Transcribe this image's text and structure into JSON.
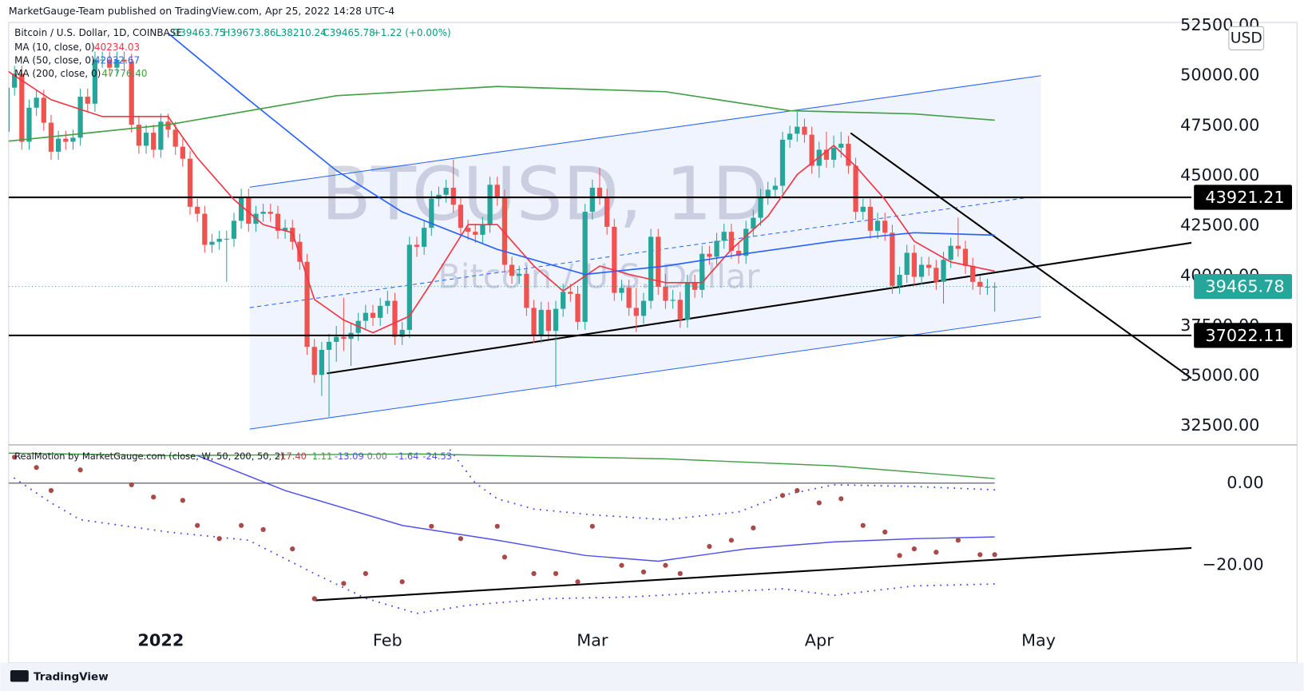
{
  "header": {
    "published": "MarketGauge-Team published on TradingView.com, Apr 25, 2022 14:28 UTC-4",
    "symbol": "Bitcoin / U.S. Dollar, 1D, COINBASE",
    "ohlc": [
      "O39463.75",
      "H39673.86",
      "L38210.24",
      "C39465.78",
      "+1.22 (+0.00%)"
    ]
  },
  "watermark": {
    "symbol": "BTCUSD, 1D",
    "name": "Bitcoin / U.S. Dollar"
  },
  "currency": "USD",
  "footer": "TradingView",
  "chart_data": [
    {
      "type": "candlestick",
      "up_color": "#26a69a",
      "down_color": "#ef5350",
      "xlim": [
        0.2,
        161.9
      ],
      "xticks": [
        {
          "value": 21,
          "label": "2022"
        },
        {
          "value": 52,
          "label": "Feb"
        },
        {
          "value": 80,
          "label": "Mar"
        },
        {
          "value": 111,
          "label": "Apr"
        },
        {
          "value": 141,
          "label": "May"
        }
      ],
      "ylim": [
        31595,
        52659
      ],
      "yticks": [
        {
          "value": 32500,
          "label": "32500.00"
        },
        {
          "value": 35000,
          "label": "35000.00"
        },
        {
          "value": 37500,
          "label": "37500.00"
        },
        {
          "value": 40000,
          "label": "40000.00"
        },
        {
          "value": 42500,
          "label": "42500.00"
        },
        {
          "value": 45000,
          "label": "45000.00"
        },
        {
          "value": 47500,
          "label": "47500.00"
        },
        {
          "value": 50000,
          "label": "50000.00"
        },
        {
          "value": 52500,
          "label": "52500.00"
        }
      ],
      "grid": false,
      "levels": [
        43921.21,
        37022.11
      ],
      "open": [
        47200,
        49400,
        50100,
        46700,
        48400,
        48900,
        47650,
        46200,
        46850,
        46700,
        46900,
        48950,
        48600,
        50800,
        50800,
        50400,
        50800,
        50700,
        47550,
        46500,
        47150,
        46300,
        47700,
        47300,
        46450,
        45850,
        43450,
        43100,
        41550,
        41700,
        41850,
        41850,
        42750,
        43950,
        42600,
        43100,
        43200,
        43100,
        42250,
        42400,
        41700,
        40700,
        36450,
        35050,
        36300,
        36700,
        36950,
        36850,
        37150,
        37750,
        38150,
        37900,
        38500,
        38750,
        36950,
        37300,
        41550,
        41450,
        42400,
        43850,
        44050,
        44400,
        43550,
        42400,
        42200,
        42050,
        42550,
        44550,
        43900,
        40550,
        40000,
        40100,
        38400,
        37050,
        38300,
        37250,
        38350,
        39200,
        39100,
        37700,
        43200,
        44400,
        43950,
        42450,
        39150,
        39400,
        38400,
        38000,
        38750,
        41950,
        39450,
        38750,
        38800,
        37800,
        39650,
        39300,
        41100,
        40950,
        41750,
        42200,
        41250,
        41000,
        42350,
        42900,
        43950,
        44300,
        44500,
        46800,
        47100,
        47450,
        47050,
        45500,
        46300,
        45800,
        46400,
        46600,
        45500,
        43200,
        43450,
        42250,
        42750,
        42150,
        39500,
        40050,
        41150,
        39950,
        40550,
        40400,
        39700,
        40800,
        41500,
        41350,
        40500,
        39700,
        39450,
        39463.75
      ],
      "high": [
        49800,
        50500,
        50500,
        48800,
        49300,
        49300,
        48050,
        47250,
        47250,
        47300,
        49350,
        49350,
        51200,
        51200,
        51200,
        51200,
        51200,
        51100,
        47950,
        47550,
        47550,
        48100,
        48100,
        47700,
        46850,
        46250,
        43850,
        43500,
        42100,
        42250,
        42250,
        43150,
        44350,
        44350,
        43500,
        43600,
        43600,
        43500,
        42800,
        42800,
        42100,
        41100,
        36850,
        36700,
        37100,
        37500,
        38900,
        37600,
        38150,
        38550,
        38550,
        38900,
        39250,
        39150,
        37700,
        41950,
        41950,
        42800,
        44250,
        44450,
        44800,
        45800,
        43950,
        42800,
        42600,
        42950,
        44950,
        44950,
        44300,
        40950,
        40500,
        40500,
        38800,
        38700,
        38700,
        38750,
        39600,
        39600,
        39500,
        43600,
        44800,
        45400,
        44350,
        42850,
        39800,
        39800,
        39400,
        39150,
        42350,
        42350,
        40100,
        39300,
        39200,
        40050,
        40050,
        41500,
        41500,
        42150,
        42600,
        42600,
        41650,
        42750,
        43300,
        44350,
        44700,
        44900,
        47200,
        47500,
        48200,
        47850,
        47450,
        46700,
        47200,
        47000,
        47200,
        47000,
        45900,
        43850,
        43850,
        43150,
        43150,
        42550,
        40450,
        41550,
        41550,
        40950,
        40950,
        40800,
        41200,
        41900,
        42900,
        41750,
        40900,
        40000,
        39850,
        39673.86
      ],
      "low": [
        46800,
        49000,
        46300,
        46300,
        48000,
        47250,
        45800,
        45800,
        46300,
        46300,
        46500,
        48200,
        48200,
        50400,
        50000,
        50000,
        50300,
        47150,
        46100,
        46100,
        45900,
        45900,
        46900,
        46050,
        45450,
        43050,
        42700,
        41150,
        41150,
        41300,
        39700,
        41450,
        42350,
        42200,
        42200,
        42700,
        42700,
        41850,
        41850,
        41300,
        40300,
        36050,
        34650,
        34000,
        32950,
        35700,
        36250,
        35500,
        36750,
        37350,
        37500,
        37500,
        38100,
        36550,
        36550,
        36900,
        40950,
        41050,
        42000,
        43450,
        43650,
        43150,
        42000,
        41800,
        41650,
        41650,
        42150,
        43500,
        40150,
        39600,
        39600,
        38000,
        36650,
        36650,
        36850,
        34400,
        37950,
        38700,
        37300,
        37300,
        42800,
        43550,
        42050,
        38750,
        38750,
        38000,
        37200,
        37600,
        38350,
        39050,
        38350,
        38350,
        37400,
        37400,
        38900,
        38900,
        40550,
        40550,
        41350,
        40850,
        40600,
        40600,
        41950,
        42500,
        43550,
        43900,
        44100,
        46400,
        46700,
        46650,
        45100,
        44900,
        45400,
        45400,
        45900,
        45100,
        42800,
        42800,
        41850,
        41850,
        41750,
        39100,
        39100,
        39650,
        39550,
        39550,
        40000,
        39300,
        38600,
        40400,
        40950,
        40100,
        39300,
        39050,
        39050,
        38210.24
      ],
      "close": [
        49400,
        50100,
        46700,
        48400,
        48900,
        47650,
        46200,
        46850,
        46700,
        46900,
        48950,
        48600,
        50800,
        50800,
        50400,
        50800,
        50700,
        47550,
        46500,
        47150,
        46300,
        47700,
        47300,
        46450,
        45850,
        43450,
        43100,
        41550,
        41700,
        41850,
        41850,
        42750,
        43950,
        42600,
        43100,
        43200,
        43100,
        42250,
        42400,
        41700,
        40700,
        36450,
        35050,
        36300,
        36700,
        36950,
        36850,
        37150,
        37750,
        38150,
        37900,
        38500,
        38750,
        36950,
        37300,
        41550,
        41450,
        42400,
        43850,
        44050,
        44400,
        43550,
        42400,
        42200,
        42050,
        42550,
        44550,
        43900,
        40550,
        40000,
        40100,
        38400,
        37050,
        38300,
        37250,
        38350,
        39200,
        39100,
        37700,
        43200,
        44400,
        43950,
        42450,
        39150,
        39400,
        38400,
        38000,
        38750,
        41950,
        39450,
        38750,
        38800,
        37800,
        39650,
        39300,
        41100,
        40950,
        41750,
        42200,
        41250,
        41000,
        42350,
        42900,
        43950,
        44300,
        44500,
        46800,
        47100,
        47450,
        47050,
        45500,
        46300,
        45800,
        46400,
        46600,
        45500,
        43200,
        43450,
        42250,
        42750,
        42150,
        39500,
        40050,
        41150,
        39950,
        40550,
        40400,
        39700,
        40800,
        41500,
        41350,
        40500,
        39700,
        39450,
        39450,
        39465.78
      ],
      "series": [
        {
          "name": "MA (10, close, 0)",
          "legend_value": "40234.03",
          "color": "#f23645",
          "x": [
            0,
            6,
            13,
            22,
            26,
            31,
            35,
            39,
            42,
            46,
            50,
            55,
            58,
            63,
            67,
            72,
            76,
            81,
            85,
            90,
            95,
            99,
            104,
            108,
            113,
            116,
            120,
            124,
            129,
            135
          ],
          "values": [
            50250,
            48800,
            47960,
            47960,
            45890,
            43810,
            42560,
            42150,
            38820,
            37790,
            37160,
            37990,
            39660,
            42560,
            42560,
            40490,
            39240,
            40490,
            40070,
            39660,
            39660,
            41320,
            42980,
            45060,
            46510,
            45470,
            43810,
            41730,
            40690,
            40234.03
          ]
        },
        {
          "name": "MA (50, close, 0)",
          "legend_value": "42032.67",
          "color": "#2962ff",
          "x": [
            22,
            33,
            45,
            54,
            67,
            79,
            90,
            101,
            113,
            118,
            124,
            135
          ],
          "values": [
            52120,
            48800,
            45260,
            43190,
            41320,
            40070,
            40490,
            41110,
            41730,
            41940,
            42150,
            42032.67
          ]
        },
        {
          "name": "MA (200, close, 0)",
          "legend_value": "47776.40",
          "color": "#43a047",
          "x": [
            0,
            22,
            45,
            67,
            90,
            107,
            124,
            135
          ],
          "values": [
            46720,
            47550,
            49000,
            49460,
            49200,
            48250,
            48090,
            47776.4
          ]
        }
      ]
    },
    {
      "type": "indicator",
      "title": "RealMotion by MarketGauge.com (close, W, 50, 200, 50, 2)",
      "legend_values": [
        "-17.40",
        "1.11",
        "-13.09",
        "0.00",
        "-1.64",
        "-24.53"
      ],
      "legend_colors": [
        "#a84a4a",
        "#43a047",
        "#5050f0",
        "#787b86",
        "#5050f0",
        "#5050f0"
      ],
      "xlim": [
        0.2,
        161.9
      ],
      "ylim": [
        -36.2,
        9.1
      ],
      "yticks": [
        {
          "value": 0,
          "label": "0.00"
        },
        {
          "value": -20,
          "label": "−20.00"
        }
      ],
      "series": [
        {
          "style": "line",
          "color": "#43a047",
          "x": [
            0,
            22,
            56,
            90,
            113,
            135
          ],
          "values": [
            7.3,
            6.7,
            7.1,
            5.9,
            4.2,
            1.11
          ]
        },
        {
          "style": "line",
          "color": "#5050f0",
          "x": [
            26,
            38,
            54,
            67,
            79,
            89,
            101,
            113,
            124,
            135
          ],
          "values": [
            6.7,
            -1.8,
            -10.3,
            -13.9,
            -17.6,
            -19,
            -16,
            -14.3,
            -13.5,
            -13.09
          ]
        },
        {
          "style": "dotted",
          "color": "#4a4af0",
          "x": [
            60,
            64,
            67,
            72,
            80,
            90,
            100,
            106,
            113,
            124,
            135
          ],
          "values": [
            9.3,
            0,
            -3.8,
            -6.3,
            -7.7,
            -8.9,
            -7,
            -3,
            -0.4,
            -0.8,
            -1.64
          ]
        },
        {
          "style": "dotted",
          "color": "#4a4af0",
          "x": [
            1,
            6,
            10,
            22,
            33,
            42,
            49,
            56,
            63,
            74,
            85,
            97,
            106,
            113,
            124,
            135
          ],
          "values": [
            1.2,
            -4.8,
            -8.9,
            -11.9,
            -13.9,
            -22,
            -28,
            -31.7,
            -29.7,
            -28.1,
            -27.7,
            -26.5,
            -25.7,
            -27.3,
            -25,
            -24.53
          ]
        },
        {
          "style": "dots",
          "color": "#a84a4a",
          "x": [
            1,
            4,
            6,
            10,
            17,
            20,
            24,
            26,
            29,
            32,
            35,
            39,
            42,
            46,
            49,
            54,
            58,
            62,
            67,
            68,
            72,
            75,
            78,
            80,
            84,
            87,
            90,
            92,
            96,
            99,
            102,
            106,
            108,
            111,
            114,
            117,
            120,
            122,
            124,
            127,
            130,
            133,
            135
          ],
          "values": [
            6.3,
            3.8,
            -1.8,
            3.2,
            -0.4,
            -3.4,
            -4.2,
            -10.3,
            -13.5,
            -10.3,
            -11.3,
            -16,
            -28.1,
            -24.4,
            -22,
            -24,
            -10.5,
            -13.5,
            -10.5,
            -18,
            -22,
            -22,
            -24,
            -10.5,
            -20,
            -21.6,
            -20,
            -22,
            -15.4,
            -13.9,
            -10.9,
            -3,
            -1.8,
            -4.8,
            -3.8,
            -10.3,
            -11.9,
            -17.6,
            -16,
            -16.8,
            -13.9,
            -17.4,
            -17.4
          ]
        }
      ]
    }
  ]
}
